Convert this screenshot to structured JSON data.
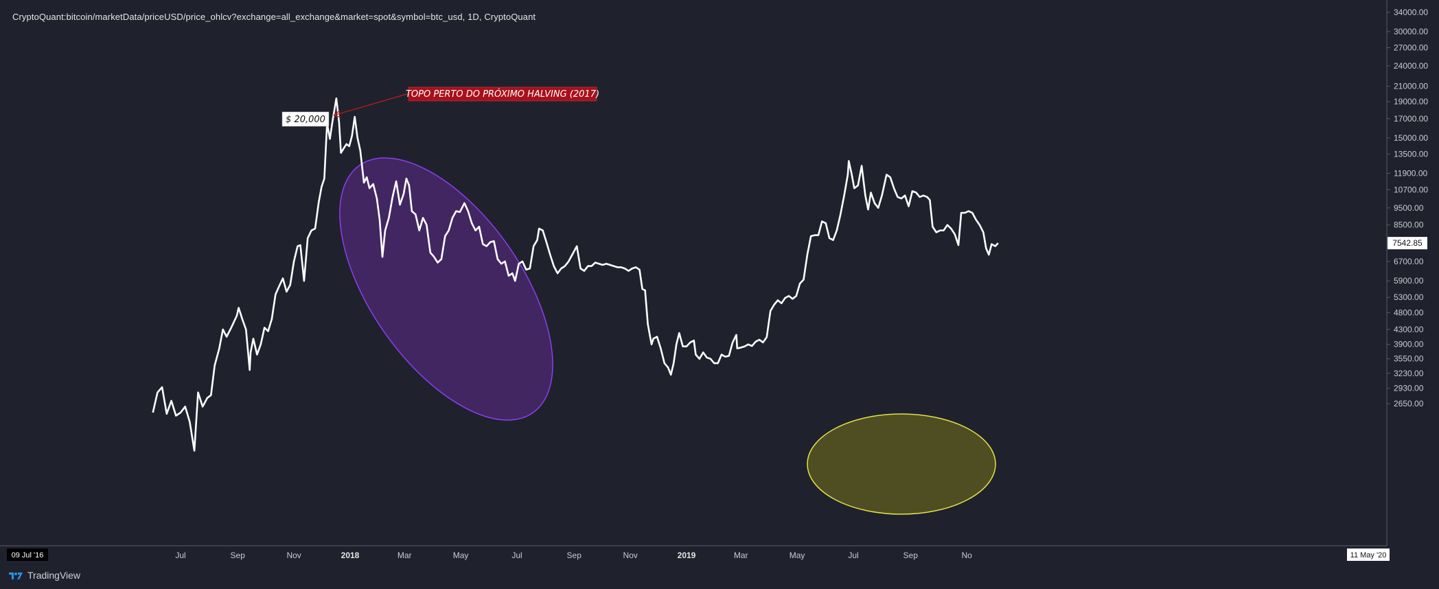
{
  "header": {
    "title": "CryptoQuant:bitcoin/marketData/priceUSD/price_ohlcv?exchange=all_exchange&market=spot&symbol=btc_usd, 1D, CryptoQuant"
  },
  "footer": {
    "brand": "TradingView",
    "start_date_label": "09 Jul '16",
    "end_date_label": "11 May '20"
  },
  "colors": {
    "background": "#1f222c",
    "line": "#ffffff",
    "purple_ellipse": "#7b2fd6",
    "yellow_ellipse": "#e6e04a",
    "annotation_red": "#a8101c"
  },
  "chart_data": {
    "type": "line",
    "scale": "log",
    "x_ticks": [
      {
        "label": "Jul",
        "date": "2017-07-01",
        "bold": false
      },
      {
        "label": "Sep",
        "date": "2017-09-01",
        "bold": false
      },
      {
        "label": "Nov",
        "date": "2017-11-01",
        "bold": false
      },
      {
        "label": "2018",
        "date": "2018-01-01",
        "bold": true
      },
      {
        "label": "Mar",
        "date": "2018-03-01",
        "bold": false
      },
      {
        "label": "May",
        "date": "2018-05-01",
        "bold": false
      },
      {
        "label": "Jul",
        "date": "2018-07-01",
        "bold": false
      },
      {
        "label": "Sep",
        "date": "2018-09-01",
        "bold": false
      },
      {
        "label": "Nov",
        "date": "2018-11-01",
        "bold": false
      },
      {
        "label": "2019",
        "date": "2019-01-01",
        "bold": true
      },
      {
        "label": "Mar",
        "date": "2019-03-01",
        "bold": false
      },
      {
        "label": "May",
        "date": "2019-05-01",
        "bold": false
      },
      {
        "label": "Jul",
        "date": "2019-07-01",
        "bold": false
      },
      {
        "label": "Sep",
        "date": "2019-09-01",
        "bold": false
      },
      {
        "label": "No",
        "date": "2019-11-01",
        "bold": false
      }
    ],
    "y_ticks": [
      "34000.00",
      "30000.00",
      "27000.00",
      "24000.00",
      "21000.00",
      "19000.00",
      "17000.00",
      "15000.00",
      "13500.00",
      "11900.00",
      "10700.00",
      "9500.00",
      "8500.00",
      "6700.00",
      "5900.00",
      "5300.00",
      "4800.00",
      "4300.00",
      "3900.00",
      "3550.00",
      "3230.00",
      "2930.00",
      "2650.00"
    ],
    "last_value_label": "7542.85",
    "series": [
      {
        "points": [
          [
            "2017-06-01",
            2500
          ],
          [
            "2017-06-06",
            2850
          ],
          [
            "2017-06-11",
            2950
          ],
          [
            "2017-06-16",
            2480
          ],
          [
            "2017-06-21",
            2700
          ],
          [
            "2017-06-26",
            2450
          ],
          [
            "2017-07-01",
            2500
          ],
          [
            "2017-07-06",
            2600
          ],
          [
            "2017-07-11",
            2350
          ],
          [
            "2017-07-16",
            1950
          ],
          [
            "2017-07-20",
            2850
          ],
          [
            "2017-07-25",
            2600
          ],
          [
            "2017-07-30",
            2750
          ],
          [
            "2017-08-03",
            2800
          ],
          [
            "2017-08-07",
            3400
          ],
          [
            "2017-08-12",
            3800
          ],
          [
            "2017-08-16",
            4300
          ],
          [
            "2017-08-20",
            4100
          ],
          [
            "2017-08-25",
            4350
          ],
          [
            "2017-08-31",
            4700
          ],
          [
            "2017-09-02",
            4950
          ],
          [
            "2017-09-06",
            4600
          ],
          [
            "2017-09-10",
            4300
          ],
          [
            "2017-09-14",
            3300
          ],
          [
            "2017-09-15",
            3700
          ],
          [
            "2017-09-18",
            4050
          ],
          [
            "2017-09-22",
            3650
          ],
          [
            "2017-09-26",
            3900
          ],
          [
            "2017-09-30",
            4350
          ],
          [
            "2017-10-04",
            4250
          ],
          [
            "2017-10-08",
            4600
          ],
          [
            "2017-10-12",
            5400
          ],
          [
            "2017-10-16",
            5700
          ],
          [
            "2017-10-20",
            6000
          ],
          [
            "2017-10-24",
            5500
          ],
          [
            "2017-10-28",
            5750
          ],
          [
            "2017-11-01",
            6700
          ],
          [
            "2017-11-05",
            7400
          ],
          [
            "2017-11-08",
            7450
          ],
          [
            "2017-11-12",
            5900
          ],
          [
            "2017-11-16",
            7800
          ],
          [
            "2017-11-20",
            8200
          ],
          [
            "2017-11-24",
            8300
          ],
          [
            "2017-11-28",
            9900
          ],
          [
            "2017-12-01",
            10900
          ],
          [
            "2017-12-04",
            11500
          ],
          [
            "2017-12-07",
            16500
          ],
          [
            "2017-12-10",
            14900
          ],
          [
            "2017-12-13",
            16800
          ],
          [
            "2017-12-17",
            19400
          ],
          [
            "2017-12-20",
            16600
          ],
          [
            "2017-12-22",
            13600
          ],
          [
            "2017-12-25",
            14000
          ],
          [
            "2017-12-28",
            14400
          ],
          [
            "2017-12-31",
            14200
          ],
          [
            "2018-01-03",
            15200
          ],
          [
            "2018-01-06",
            17200
          ],
          [
            "2018-01-09",
            15000
          ],
          [
            "2018-01-12",
            13800
          ],
          [
            "2018-01-16",
            11200
          ],
          [
            "2018-01-19",
            11600
          ],
          [
            "2018-01-22",
            10800
          ],
          [
            "2018-01-26",
            11100
          ],
          [
            "2018-01-30",
            10100
          ],
          [
            "2018-02-02",
            8800
          ],
          [
            "2018-02-05",
            6900
          ],
          [
            "2018-02-08",
            8200
          ],
          [
            "2018-02-12",
            8900
          ],
          [
            "2018-02-16",
            10200
          ],
          [
            "2018-02-20",
            11300
          ],
          [
            "2018-02-24",
            9700
          ],
          [
            "2018-02-28",
            10400
          ],
          [
            "2018-03-03",
            11500
          ],
          [
            "2018-03-06",
            11000
          ],
          [
            "2018-03-09",
            9300
          ],
          [
            "2018-03-13",
            9100
          ],
          [
            "2018-03-17",
            8200
          ],
          [
            "2018-03-21",
            8900
          ],
          [
            "2018-03-25",
            8500
          ],
          [
            "2018-03-29",
            7100
          ],
          [
            "2018-04-02",
            6900
          ],
          [
            "2018-04-06",
            6650
          ],
          [
            "2018-04-10",
            6800
          ],
          [
            "2018-04-14",
            7900
          ],
          [
            "2018-04-18",
            8200
          ],
          [
            "2018-04-22",
            8900
          ],
          [
            "2018-04-26",
            9300
          ],
          [
            "2018-04-30",
            9250
          ],
          [
            "2018-05-05",
            9800
          ],
          [
            "2018-05-09",
            9300
          ],
          [
            "2018-05-13",
            8600
          ],
          [
            "2018-05-17",
            8200
          ],
          [
            "2018-05-21",
            8400
          ],
          [
            "2018-05-25",
            7500
          ],
          [
            "2018-05-29",
            7400
          ],
          [
            "2018-06-02",
            7600
          ],
          [
            "2018-06-06",
            7650
          ],
          [
            "2018-06-10",
            6800
          ],
          [
            "2018-06-14",
            6600
          ],
          [
            "2018-06-18",
            6700
          ],
          [
            "2018-06-22",
            6100
          ],
          [
            "2018-06-26",
            6200
          ],
          [
            "2018-06-29",
            5900
          ],
          [
            "2018-07-03",
            6600
          ],
          [
            "2018-07-07",
            6700
          ],
          [
            "2018-07-11",
            6350
          ],
          [
            "2018-07-15",
            6400
          ],
          [
            "2018-07-19",
            7400
          ],
          [
            "2018-07-23",
            7700
          ],
          [
            "2018-07-25",
            8300
          ],
          [
            "2018-07-29",
            8200
          ],
          [
            "2018-08-02",
            7600
          ],
          [
            "2018-08-06",
            7000
          ],
          [
            "2018-08-10",
            6500
          ],
          [
            "2018-08-14",
            6200
          ],
          [
            "2018-08-18",
            6400
          ],
          [
            "2018-08-22",
            6500
          ],
          [
            "2018-08-26",
            6700
          ],
          [
            "2018-08-30",
            7000
          ],
          [
            "2018-09-04",
            7400
          ],
          [
            "2018-09-08",
            6400
          ],
          [
            "2018-09-12",
            6300
          ],
          [
            "2018-09-16",
            6500
          ],
          [
            "2018-09-20",
            6500
          ],
          [
            "2018-09-24",
            6650
          ],
          [
            "2018-09-28",
            6600
          ],
          [
            "2018-10-02",
            6550
          ],
          [
            "2018-10-06",
            6600
          ],
          [
            "2018-10-10",
            6550
          ],
          [
            "2018-10-14",
            6500
          ],
          [
            "2018-10-18",
            6450
          ],
          [
            "2018-10-22",
            6450
          ],
          [
            "2018-10-26",
            6400
          ],
          [
            "2018-10-30",
            6300
          ],
          [
            "2018-11-03",
            6400
          ],
          [
            "2018-11-07",
            6450
          ],
          [
            "2018-11-11",
            6350
          ],
          [
            "2018-11-14",
            5600
          ],
          [
            "2018-11-17",
            5550
          ],
          [
            "2018-11-20",
            4450
          ],
          [
            "2018-11-24",
            3900
          ],
          [
            "2018-11-26",
            4050
          ],
          [
            "2018-11-30",
            4100
          ],
          [
            "2018-12-04",
            3800
          ],
          [
            "2018-12-08",
            3450
          ],
          [
            "2018-12-12",
            3350
          ],
          [
            "2018-12-15",
            3200
          ],
          [
            "2018-12-18",
            3450
          ],
          [
            "2018-12-21",
            3900
          ],
          [
            "2018-12-24",
            4200
          ],
          [
            "2018-12-28",
            3850
          ],
          [
            "2019-01-01",
            3850
          ],
          [
            "2019-01-05",
            3950
          ],
          [
            "2019-01-09",
            4000
          ],
          [
            "2019-01-11",
            3650
          ],
          [
            "2019-01-15",
            3550
          ],
          [
            "2019-01-19",
            3700
          ],
          [
            "2019-01-23",
            3580
          ],
          [
            "2019-01-27",
            3550
          ],
          [
            "2019-01-31",
            3450
          ],
          [
            "2019-02-04",
            3450
          ],
          [
            "2019-02-08",
            3650
          ],
          [
            "2019-02-12",
            3600
          ],
          [
            "2019-02-16",
            3620
          ],
          [
            "2019-02-20",
            3950
          ],
          [
            "2019-02-24",
            4150
          ],
          [
            "2019-02-25",
            3800
          ],
          [
            "2019-03-01",
            3820
          ],
          [
            "2019-03-05",
            3850
          ],
          [
            "2019-03-09",
            3900
          ],
          [
            "2019-03-13",
            3860
          ],
          [
            "2019-03-17",
            3970
          ],
          [
            "2019-03-21",
            4020
          ],
          [
            "2019-03-25",
            3950
          ],
          [
            "2019-03-29",
            4090
          ],
          [
            "2019-04-02",
            4850
          ],
          [
            "2019-04-06",
            5050
          ],
          [
            "2019-04-10",
            5200
          ],
          [
            "2019-04-14",
            5100
          ],
          [
            "2019-04-18",
            5280
          ],
          [
            "2019-04-22",
            5350
          ],
          [
            "2019-04-26",
            5250
          ],
          [
            "2019-04-30",
            5350
          ],
          [
            "2019-05-04",
            5800
          ],
          [
            "2019-05-08",
            5950
          ],
          [
            "2019-05-12",
            7000
          ],
          [
            "2019-05-16",
            7900
          ],
          [
            "2019-05-20",
            7950
          ],
          [
            "2019-05-24",
            7950
          ],
          [
            "2019-05-28",
            8700
          ],
          [
            "2019-06-01",
            8600
          ],
          [
            "2019-06-05",
            7800
          ],
          [
            "2019-06-09",
            7700
          ],
          [
            "2019-06-13",
            8200
          ],
          [
            "2019-06-17",
            9100
          ],
          [
            "2019-06-21",
            10300
          ],
          [
            "2019-06-25",
            11800
          ],
          [
            "2019-06-26",
            12900
          ],
          [
            "2019-06-29",
            11900
          ],
          [
            "2019-07-02",
            10800
          ],
          [
            "2019-07-06",
            11000
          ],
          [
            "2019-07-10",
            12500
          ],
          [
            "2019-07-14",
            10300
          ],
          [
            "2019-07-17",
            9400
          ],
          [
            "2019-07-20",
            10500
          ],
          [
            "2019-07-24",
            9800
          ],
          [
            "2019-07-28",
            9500
          ],
          [
            "2019-08-01",
            10300
          ],
          [
            "2019-08-06",
            11800
          ],
          [
            "2019-08-10",
            11600
          ],
          [
            "2019-08-14",
            10800
          ],
          [
            "2019-08-18",
            10200
          ],
          [
            "2019-08-22",
            10100
          ],
          [
            "2019-08-26",
            10300
          ],
          [
            "2019-08-30",
            9600
          ],
          [
            "2019-09-03",
            10600
          ],
          [
            "2019-09-07",
            10500
          ],
          [
            "2019-09-11",
            10200
          ],
          [
            "2019-09-15",
            10300
          ],
          [
            "2019-09-19",
            10200
          ],
          [
            "2019-09-22",
            10000
          ],
          [
            "2019-09-25",
            8400
          ],
          [
            "2019-09-29",
            8100
          ],
          [
            "2019-10-03",
            8200
          ],
          [
            "2019-10-07",
            8200
          ],
          [
            "2019-10-11",
            8500
          ],
          [
            "2019-10-15",
            8300
          ],
          [
            "2019-10-19",
            8000
          ],
          [
            "2019-10-23",
            7450
          ],
          [
            "2019-10-26",
            9200
          ],
          [
            "2019-10-30",
            9200
          ],
          [
            "2019-11-03",
            9300
          ],
          [
            "2019-11-07",
            9200
          ],
          [
            "2019-11-11",
            8800
          ],
          [
            "2019-11-15",
            8500
          ],
          [
            "2019-11-19",
            8100
          ],
          [
            "2019-11-22",
            7300
          ],
          [
            "2019-11-25",
            7000
          ],
          [
            "2019-11-28",
            7500
          ],
          [
            "2019-12-02",
            7400
          ],
          [
            "2019-12-05",
            7550
          ]
        ]
      }
    ],
    "annotations": [
      {
        "type": "label",
        "text": "$ 20,000",
        "style": "white-box"
      },
      {
        "type": "label",
        "text": "TOPO PERTO DO PRÓXIMO HALVING (2017)",
        "style": "red-box"
      }
    ]
  }
}
